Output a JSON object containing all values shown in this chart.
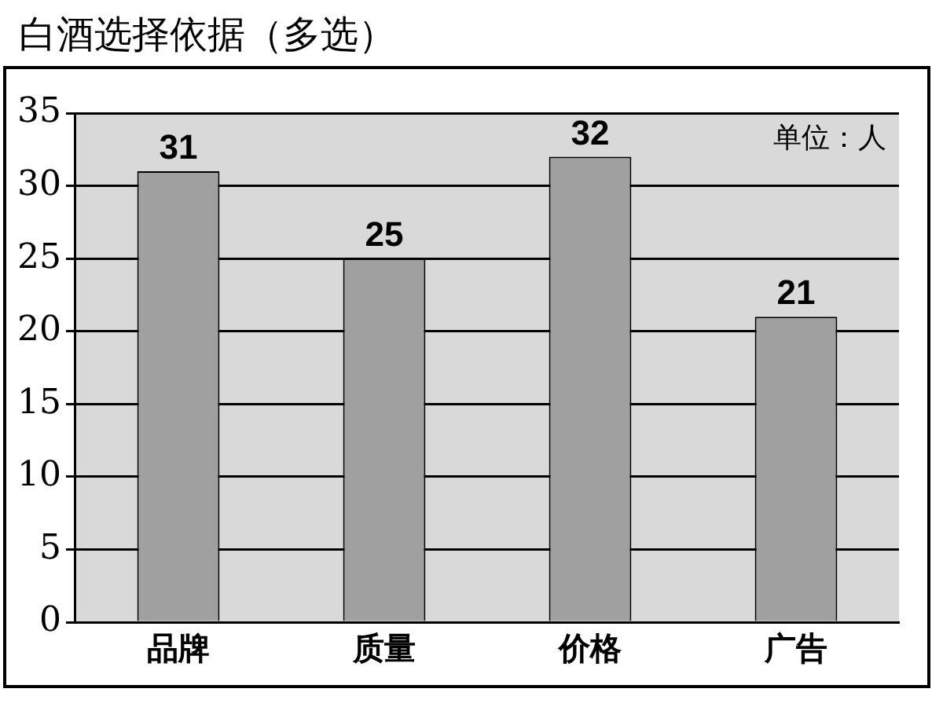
{
  "chart_data": {
    "type": "bar",
    "title": "白酒选择依据（多选）",
    "categories": [
      "品牌",
      "质量",
      "价格",
      "广告"
    ],
    "values": [
      31,
      25,
      32,
      21
    ],
    "color": "#a0a0a0",
    "ylim": [
      0,
      35
    ],
    "yticks": [
      0,
      5,
      10,
      15,
      20,
      25,
      30,
      35
    ],
    "grid": "y",
    "data_labels": true,
    "annotations": [
      "单位：人"
    ]
  }
}
